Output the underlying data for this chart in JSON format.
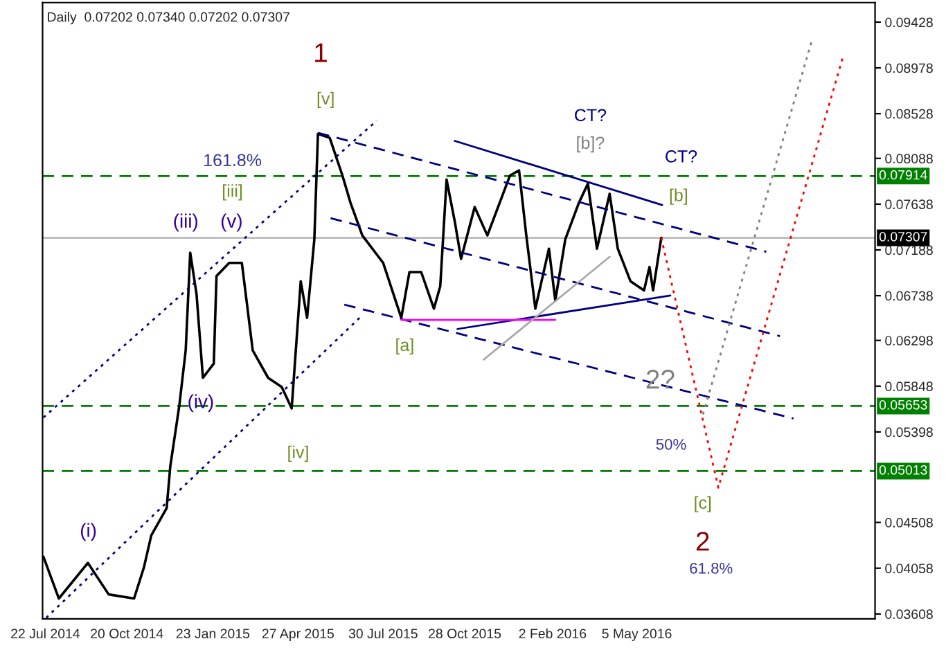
{
  "chart_data": {
    "type": "line",
    "title": "Daily  0.07202 0.07340 0.07202 0.07307",
    "xlim": [
      "2014-07-19",
      "2017-01-23"
    ],
    "ylim": [
      0.0356,
      0.0962
    ],
    "xticks": [
      {
        "value": "2014-07-22",
        "label": "22 Jul 2014"
      },
      {
        "value": "2014-10-20",
        "label": "20 Oct 2014"
      },
      {
        "value": "2015-01-23",
        "label": "23 Jan 2015"
      },
      {
        "value": "2015-04-27",
        "label": "27 Apr 2015"
      },
      {
        "value": "2015-07-30",
        "label": "30 Jul 2015"
      },
      {
        "value": "2015-10-28",
        "label": "28 Oct 2015"
      },
      {
        "value": "2016-02-02",
        "label": "2 Feb 2016"
      },
      {
        "value": "2016-05-05",
        "label": "5 May 2016"
      }
    ],
    "yticks": [
      {
        "value": 0.09428,
        "label": "0.09428"
      },
      {
        "value": 0.08978,
        "label": "0.08978"
      },
      {
        "value": 0.08528,
        "label": "0.08528"
      },
      {
        "value": 0.08088,
        "label": "0.08088"
      },
      {
        "value": 0.07638,
        "label": "0.07638"
      },
      {
        "value": 0.07188,
        "label": "0.07188"
      },
      {
        "value": 0.06738,
        "label": "0.06738"
      },
      {
        "value": 0.06298,
        "label": "0.06298"
      },
      {
        "value": 0.05848,
        "label": "0.05848"
      },
      {
        "value": 0.05398,
        "label": "0.05398"
      },
      {
        "value": 0.04508,
        "label": "0.04508"
      },
      {
        "value": 0.04058,
        "label": "0.04058"
      },
      {
        "value": 0.03608,
        "label": "0.03608"
      }
    ],
    "grid": false,
    "legend": false,
    "series": [
      {
        "color": "#000000",
        "x": [
          "2014-07-20",
          "2014-08-06",
          "2014-09-07",
          "2014-09-30",
          "2014-10-28",
          "2014-11-08",
          "2014-11-16",
          "2014-12-03",
          "2014-12-07",
          "2014-12-17",
          "2014-12-24",
          "2014-12-29",
          "2015-01-05",
          "2015-01-12",
          "2015-01-24",
          "2015-01-27",
          "2015-02-10",
          "2015-02-24",
          "2015-03-08",
          "2015-03-25",
          "2015-04-09",
          "2015-04-20",
          "2015-04-30",
          "2015-05-07",
          "2015-05-15",
          "2015-05-19",
          "2015-06-01",
          "2015-06-15",
          "2015-06-24",
          "2015-07-07",
          "2015-07-30",
          "2015-08-19",
          "2015-08-28",
          "2015-09-10",
          "2015-09-24",
          "2015-10-01",
          "2015-10-08",
          "2015-10-17",
          "2015-10-24",
          "2015-11-08",
          "2015-11-22",
          "2015-12-17",
          "2015-12-27",
          "2016-01-04",
          "2016-01-14",
          "2016-01-29",
          "2016-02-05",
          "2016-02-16",
          "2016-03-02",
          "2016-03-12",
          "2016-03-22",
          "2016-04-05",
          "2016-04-14",
          "2016-04-28",
          "2016-05-13",
          "2016-05-19",
          "2016-05-23",
          "2016-06-01"
        ],
        "values": [
          0.0417,
          0.0376,
          0.0411,
          0.038,
          0.0376,
          0.0407,
          0.0438,
          0.0465,
          0.0506,
          0.0566,
          0.062,
          0.0716,
          0.0675,
          0.0593,
          0.0607,
          0.0693,
          0.0706,
          0.0706,
          0.062,
          0.0593,
          0.0584,
          0.0563,
          0.0688,
          0.0652,
          0.0729,
          0.0833,
          0.0829,
          0.0792,
          0.0765,
          0.0733,
          0.0706,
          0.0652,
          0.0697,
          0.0697,
          0.0661,
          0.0683,
          0.0788,
          0.0747,
          0.071,
          0.0761,
          0.0733,
          0.0792,
          0.0797,
          0.0733,
          0.0661,
          0.072,
          0.0669,
          0.0729,
          0.0765,
          0.0784,
          0.072,
          0.0774,
          0.072,
          0.0688,
          0.0679,
          0.0702,
          0.0679,
          0.07307
        ]
      },
      {
        "color": "#000080",
        "line_style": "dotted",
        "x": [
          "2014-07-20",
          "2015-07-23"
        ],
        "values": [
          0.0554,
          0.0846
        ]
      },
      {
        "color": "#000080",
        "line_style": "dotted",
        "x": [
          "2014-07-23",
          "2015-07-04"
        ],
        "values": [
          0.0357,
          0.0652
        ]
      },
      {
        "color": "#000080",
        "line_style": "dashed",
        "x": [
          "2015-05-19",
          "2016-09-25"
        ],
        "values": [
          0.0834,
          0.0717
        ]
      },
      {
        "color": "#000080",
        "line_style": "dashed",
        "x": [
          "2015-06-02",
          "2016-10-10"
        ],
        "values": [
          0.075,
          0.0634
        ]
      },
      {
        "color": "#000080",
        "line_style": "dashed",
        "x": [
          "2015-06-17",
          "2016-10-25"
        ],
        "values": [
          0.0665,
          0.0553
        ]
      },
      {
        "color": "#000080",
        "line_style": "solid",
        "x": [
          "2015-10-17",
          "2016-06-02"
        ],
        "values": [
          0.0826,
          0.0763
        ]
      },
      {
        "color": "#000080",
        "line_style": "solid",
        "x": [
          "2015-10-20",
          "2016-06-11"
        ],
        "values": [
          0.0641,
          0.0674
        ]
      },
      {
        "color": "#ff00ff",
        "line_style": "solid",
        "x": [
          "2015-08-19",
          "2016-02-05"
        ],
        "values": [
          0.065,
          0.065
        ]
      },
      {
        "color": "#a9a9a9",
        "line_style": "solid",
        "x": [
          "2015-11-18",
          "2016-04-05"
        ],
        "values": [
          0.0611,
          0.0712
        ]
      },
      {
        "color": "#ff0000",
        "line_style": "dotted",
        "x": [
          "2016-06-01",
          "2016-08-03",
          "2016-12-19"
        ],
        "values": [
          0.07307,
          0.0485,
          0.091
        ]
      },
      {
        "color": "#808080",
        "line_style": "dotted",
        "x": [
          "2016-07-17",
          "2016-11-15"
        ],
        "values": [
          0.0557,
          0.0927
        ]
      }
    ],
    "ref_lines": [
      {
        "axis": "y",
        "value": 0.07914,
        "label": "0.07914",
        "color": "#008000",
        "line_style": "dashed"
      },
      {
        "axis": "y",
        "value": 0.05653,
        "label": "0.05653",
        "color": "#008000",
        "line_style": "dashed"
      },
      {
        "axis": "y",
        "value": 0.05013,
        "label": "0.05013",
        "color": "#008000",
        "line_style": "dashed"
      },
      {
        "axis": "y",
        "value": 0.07307,
        "label": "0.07307",
        "color": "#c0c0c0",
        "line_style": "solid"
      }
    ],
    "annotations": [
      "1",
      "[v]",
      "161.8%",
      "[iii]",
      "(iii)",
      "(v)",
      "(iv)",
      "[iv]",
      "(i)",
      "[a]",
      "CT?",
      "[b]?",
      "CT?",
      "[b]",
      "2?",
      "50%",
      "[c]",
      "2",
      "61.8%"
    ]
  }
}
